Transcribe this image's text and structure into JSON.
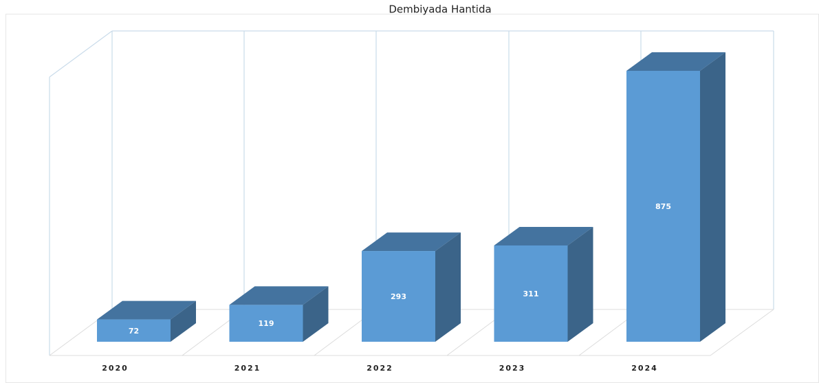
{
  "chart_data": {
    "type": "bar",
    "title": "Dembiyada Hantida",
    "categories": [
      "2020",
      "2021",
      "2022",
      "2023",
      "2024"
    ],
    "values": [
      72,
      119,
      293,
      311,
      875
    ],
    "color": "#5b9bd5"
  }
}
